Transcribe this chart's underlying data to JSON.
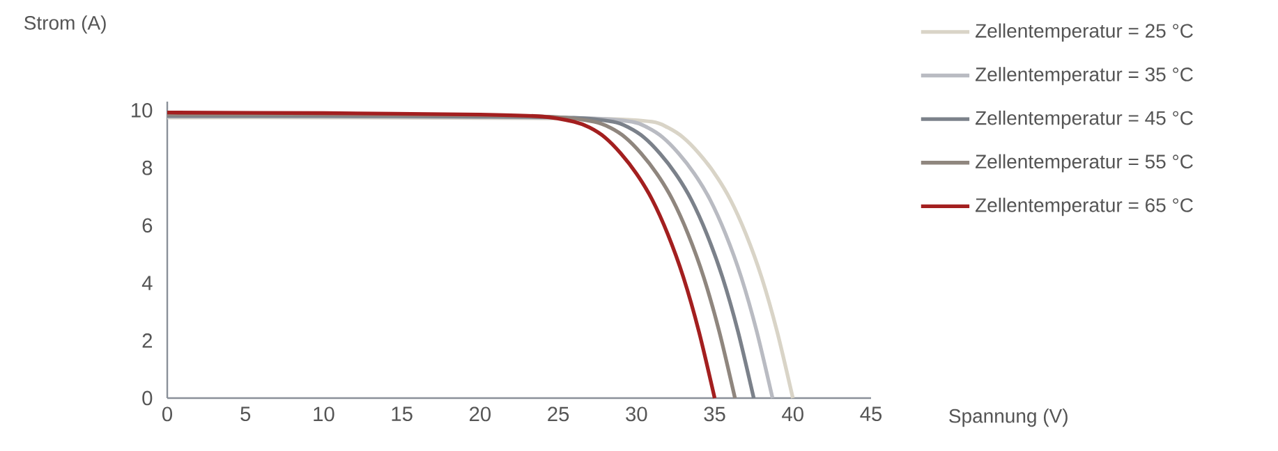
{
  "chart_data": {
    "type": "line",
    "xlabel": "Spannung (V)",
    "ylabel": "Strom (A)",
    "xlim": [
      0,
      45
    ],
    "ylim": [
      0,
      10.3
    ],
    "xticks": [
      0,
      5,
      10,
      15,
      20,
      25,
      30,
      35,
      40,
      45
    ],
    "yticks": [
      0,
      2,
      4,
      6,
      8,
      10
    ],
    "grid": false,
    "legend": "top right",
    "marker": "none",
    "line_style": "solid",
    "series": [
      {
        "name": "Zellentemperatur = 25 °C",
        "color": "#d9d4c7",
        "x": [
          0,
          10,
          20,
          28,
          31,
          32,
          33,
          34,
          35,
          36,
          37,
          38,
          39,
          40
        ],
        "values": [
          9.75,
          9.75,
          9.73,
          9.7,
          9.6,
          9.4,
          9.05,
          8.5,
          7.8,
          6.9,
          5.7,
          4.2,
          2.3,
          0
        ]
      },
      {
        "name": "Zellentemperatur = 35 °C",
        "color": "#b9bbc2",
        "x": [
          0,
          10,
          20,
          27,
          29.7,
          30.7,
          31.7,
          32.7,
          33.7,
          34.7,
          35.7,
          36.7,
          37.7,
          38.7
        ],
        "values": [
          9.78,
          9.78,
          9.76,
          9.72,
          9.6,
          9.4,
          9.05,
          8.5,
          7.8,
          6.9,
          5.7,
          4.2,
          2.3,
          0
        ]
      },
      {
        "name": "Zellentemperatur = 45 °C",
        "color": "#7b818a",
        "x": [
          0,
          10,
          20,
          26,
          28.5,
          29.5,
          30.5,
          31.5,
          32.5,
          33.5,
          34.5,
          35.5,
          36.5,
          37.5
        ],
        "values": [
          9.8,
          9.8,
          9.78,
          9.74,
          9.6,
          9.4,
          9.05,
          8.5,
          7.8,
          6.9,
          5.7,
          4.2,
          2.3,
          0
        ]
      },
      {
        "name": "Zellentemperatur = 55 °C",
        "color": "#8f867e",
        "x": [
          0,
          10,
          20,
          25,
          27.3,
          28.3,
          29.3,
          30.3,
          31.3,
          32.3,
          33.3,
          34.3,
          35.3,
          36.3
        ],
        "values": [
          9.85,
          9.85,
          9.82,
          9.76,
          9.6,
          9.4,
          9.05,
          8.5,
          7.8,
          6.9,
          5.7,
          4.2,
          2.3,
          0
        ]
      },
      {
        "name": "Zellentemperatur = 65 °C",
        "color": "#a31f1f",
        "x": [
          0,
          10,
          20,
          24,
          26,
          27,
          28,
          29,
          30,
          31,
          32,
          33,
          34,
          35
        ],
        "values": [
          9.92,
          9.9,
          9.85,
          9.78,
          9.6,
          9.4,
          9.05,
          8.5,
          7.8,
          6.9,
          5.7,
          4.2,
          2.3,
          0
        ]
      }
    ]
  }
}
